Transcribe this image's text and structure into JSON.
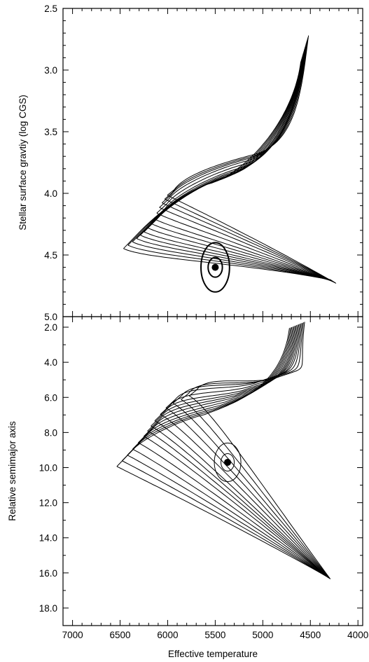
{
  "chart_data": [
    {
      "type": "line",
      "ylabel": "Stellar surface gravtiy (log CGS)",
      "xlabel": "",
      "xlim": [
        7100,
        3950
      ],
      "ylim": [
        5.0,
        2.5
      ],
      "x_ticks": [
        7000,
        6500,
        6000,
        5500,
        5000,
        4500,
        4000
      ],
      "y_ticks": [
        2.5,
        3.0,
        3.5,
        4.0,
        4.5,
        5.0
      ],
      "y_tick_labels": [
        "2.5",
        "3.0",
        "3.5",
        "4.0",
        "4.5",
        "5.0"
      ],
      "track_hooks": [
        [
          5930,
          3.97
        ],
        [
          5980,
          4.03
        ],
        [
          6030,
          4.13
        ],
        [
          6100,
          4.2
        ],
        [
          6180,
          4.25
        ],
        [
          6280,
          4.3
        ]
      ],
      "track_count": 14,
      "track_tip_start": [
        4520,
        2.72
      ],
      "track_tip_end": [
        4600,
        2.93
      ],
      "track_convergence": [
        4230,
        4.73
      ],
      "point": {
        "x": 5500,
        "y": 4.6
      },
      "contours": [
        {
          "level": "1-sigma",
          "semi_x": 75,
          "semi_y": 0.08
        },
        {
          "level": "2-sigma",
          "semi_x": 150,
          "semi_y": 0.2
        }
      ]
    },
    {
      "type": "line",
      "ylabel": "Relative semimajor axis",
      "xlabel": "Effective temperature",
      "xlim": [
        7100,
        3950
      ],
      "ylim": [
        19.0,
        1.4
      ],
      "x_ticks": [
        7000,
        6500,
        6000,
        5500,
        5000,
        4500,
        4000
      ],
      "x_tick_labels": [
        "7000",
        "6500",
        "6000",
        "5500",
        "5000",
        "4500",
        "4000"
      ],
      "y_ticks": [
        2.0,
        4.0,
        6.0,
        8.0,
        10.0,
        12.0,
        14.0,
        16.0,
        18.0
      ],
      "y_tick_labels": [
        "2.0",
        "4.0",
        "6.0",
        "8.0",
        "10.0",
        "12.0",
        "14.0",
        "16.0",
        "18.0"
      ],
      "track_hooks": [
        [
          5700,
          5.6
        ],
        [
          5900,
          6.0
        ],
        [
          6030,
          6.8
        ],
        [
          6100,
          7.4
        ],
        [
          6230,
          8.2
        ],
        [
          6350,
          8.9
        ]
      ],
      "track_count": 14,
      "track_tip_start": [
        4560,
        1.7
      ],
      "track_tip_end": [
        4720,
        2.05
      ],
      "track_convergence": [
        4290,
        16.35
      ],
      "point": {
        "x": 5370,
        "y": 9.7
      },
      "contours": [
        {
          "level": "1-sigma",
          "semi_x": 70,
          "semi_y": 0.5
        },
        {
          "level": "2-sigma",
          "semi_x": 140,
          "semi_y": 1.1
        }
      ]
    }
  ]
}
